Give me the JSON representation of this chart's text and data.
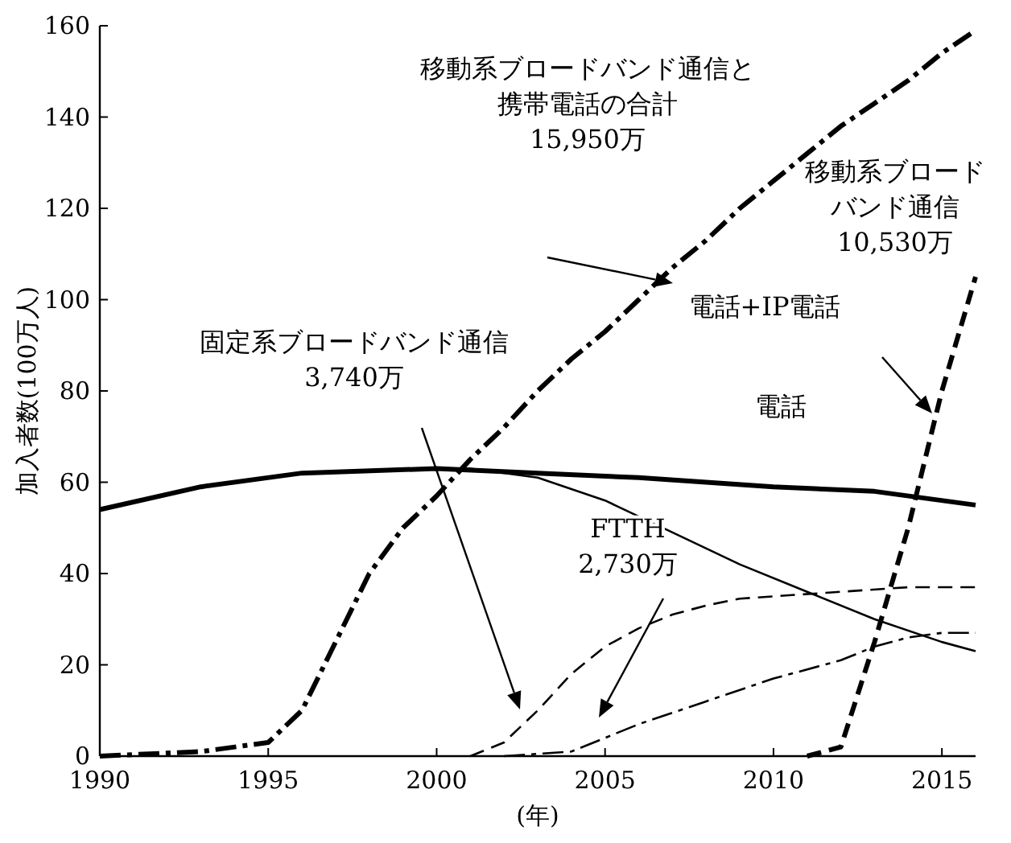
{
  "chart_data": {
    "type": "line",
    "xlabel": "(年)",
    "ylabel": "加入者数(100万人)",
    "xlim": [
      1990,
      2016
    ],
    "ylim": [
      0,
      160
    ],
    "xticks": [
      1990,
      1995,
      2000,
      2005,
      2010,
      2015
    ],
    "yticks": [
      0,
      20,
      40,
      60,
      80,
      100,
      120,
      140,
      160
    ],
    "grid": false,
    "marker": "none",
    "series": [
      {
        "color": "#000000",
        "line_style": "dashdot",
        "x": [
          1990,
          1993,
          1995,
          1996,
          1997,
          1998,
          1999,
          2000,
          2001,
          2002,
          2003,
          2004,
          2005,
          2006,
          2007,
          2008,
          2009,
          2010,
          2011,
          2012,
          2013,
          2014,
          2015,
          2016
        ],
        "values": [
          0,
          1,
          3,
          10,
          25,
          40,
          50,
          57,
          65,
          72,
          80,
          87,
          93,
          100,
          107,
          113,
          120,
          126,
          132,
          138,
          143,
          148,
          154,
          159
        ]
      },
      {
        "color": "#000000",
        "line_style": "solid",
        "x": [
          1990,
          1993,
          1996,
          2000,
          2003,
          2006,
          2010,
          2013,
          2016
        ],
        "values": [
          54,
          59,
          62,
          63,
          62,
          61,
          59,
          58,
          55
        ]
      },
      {
        "color": "#000000",
        "line_style": "solid",
        "x": [
          1990,
          1993,
          1996,
          2000,
          2001,
          2003,
          2005,
          2007,
          2009,
          2011,
          2013,
          2015,
          2016
        ],
        "values": [
          54,
          59,
          62,
          63,
          63,
          61,
          56,
          49,
          42,
          36,
          30,
          25,
          23
        ]
      },
      {
        "color": "#000000",
        "line_style": "dashed",
        "x": [
          2001,
          2002,
          2003,
          2004,
          2005,
          2006,
          2007,
          2008,
          2009,
          2010,
          2012,
          2014,
          2016
        ],
        "values": [
          0,
          3,
          10,
          18,
          24,
          28,
          31,
          33,
          34.5,
          35,
          36,
          37,
          37
        ]
      },
      {
        "color": "#000000",
        "line_style": "dashdot",
        "x": [
          2002,
          2004,
          2005,
          2006,
          2008,
          2010,
          2012,
          2013,
          2014,
          2015,
          2016
        ],
        "values": [
          0,
          1,
          4,
          7,
          12,
          17,
          21,
          24,
          26,
          27,
          27
        ]
      },
      {
        "color": "#000000",
        "line_style": "dashed",
        "x": [
          2011,
          2012,
          2013,
          2014,
          2015,
          2016
        ],
        "values": [
          0,
          2,
          25,
          50,
          80,
          105
        ]
      }
    ],
    "annotations": [
      "移動系ブロードバンド通信と携帯電話の合計\n15,950万",
      "移動系ブロードバンド通信\n10,530万",
      "固定系ブロードバンド通信\n3,740万",
      "FTTH\n2,730万",
      "電話+IP電話",
      "電話"
    ]
  }
}
